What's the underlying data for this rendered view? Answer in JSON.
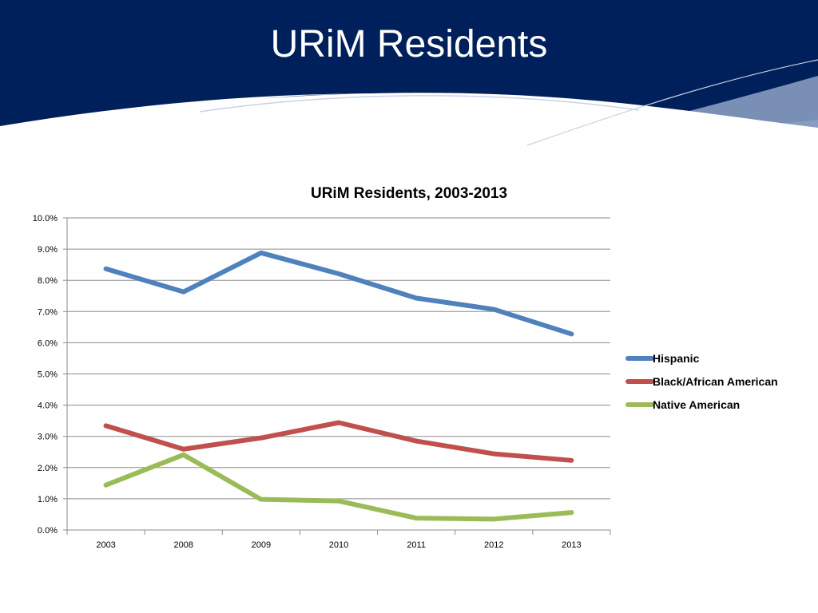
{
  "slide": {
    "title": "URiM Residents"
  },
  "colors": {
    "header_navy": "#00205b",
    "hispanic": "#4f81bd",
    "black": "#c0504d",
    "native": "#9bbb59"
  },
  "chart_data": {
    "type": "line",
    "title": "URiM Residents, 2003-2013",
    "categories": [
      "2003",
      "2008",
      "2009",
      "2010",
      "2011",
      "2012",
      "2013"
    ],
    "series": [
      {
        "name": "Hispanic",
        "values": [
          8.37,
          7.63,
          8.88,
          8.21,
          7.43,
          7.07,
          6.28
        ]
      },
      {
        "name": "Black/African American",
        "values": [
          3.34,
          2.59,
          2.95,
          3.44,
          2.85,
          2.44,
          2.23
        ]
      },
      {
        "name": "Native American",
        "values": [
          1.44,
          2.41,
          0.98,
          0.93,
          0.38,
          0.35,
          0.56
        ]
      }
    ],
    "ylim": [
      0,
      10
    ],
    "yticks": [
      "0.0%",
      "1.0%",
      "2.0%",
      "3.0%",
      "4.0%",
      "5.0%",
      "6.0%",
      "7.0%",
      "8.0%",
      "9.0%",
      "10.0%"
    ],
    "grid": true,
    "legend": "right"
  }
}
